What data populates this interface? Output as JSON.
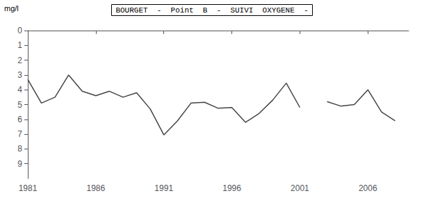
{
  "chart_data": {
    "type": "line",
    "title": "BOURGET  -  Point  B  -  SUIVI  OXYGENE  -",
    "ylabel": "mg/l",
    "x": [
      1981,
      1982,
      1983,
      1984,
      1985,
      1986,
      1987,
      1988,
      1989,
      1990,
      1991,
      1992,
      1993,
      1994,
      1995,
      1996,
      1997,
      1998,
      1999,
      2000,
      2001,
      2002,
      2003,
      2004,
      2005,
      2006,
      2007,
      2008
    ],
    "values": [
      3.3,
      4.9,
      4.5,
      3.0,
      4.1,
      4.4,
      4.1,
      4.5,
      4.2,
      5.3,
      7.05,
      6.1,
      4.9,
      4.85,
      5.25,
      5.2,
      6.2,
      5.6,
      4.7,
      3.55,
      5.2,
      null,
      4.8,
      5.1,
      5.0,
      4.0,
      5.5,
      6.1
    ],
    "color": "#444444",
    "xlim": [
      1981,
      2009
    ],
    "xticks": [
      1981,
      1986,
      1991,
      1996,
      2001,
      2006
    ],
    "ylim": [
      10,
      0
    ],
    "yticks": [
      0,
      1,
      2,
      3,
      4,
      5,
      6,
      7,
      8,
      9
    ],
    "grid": false
  }
}
